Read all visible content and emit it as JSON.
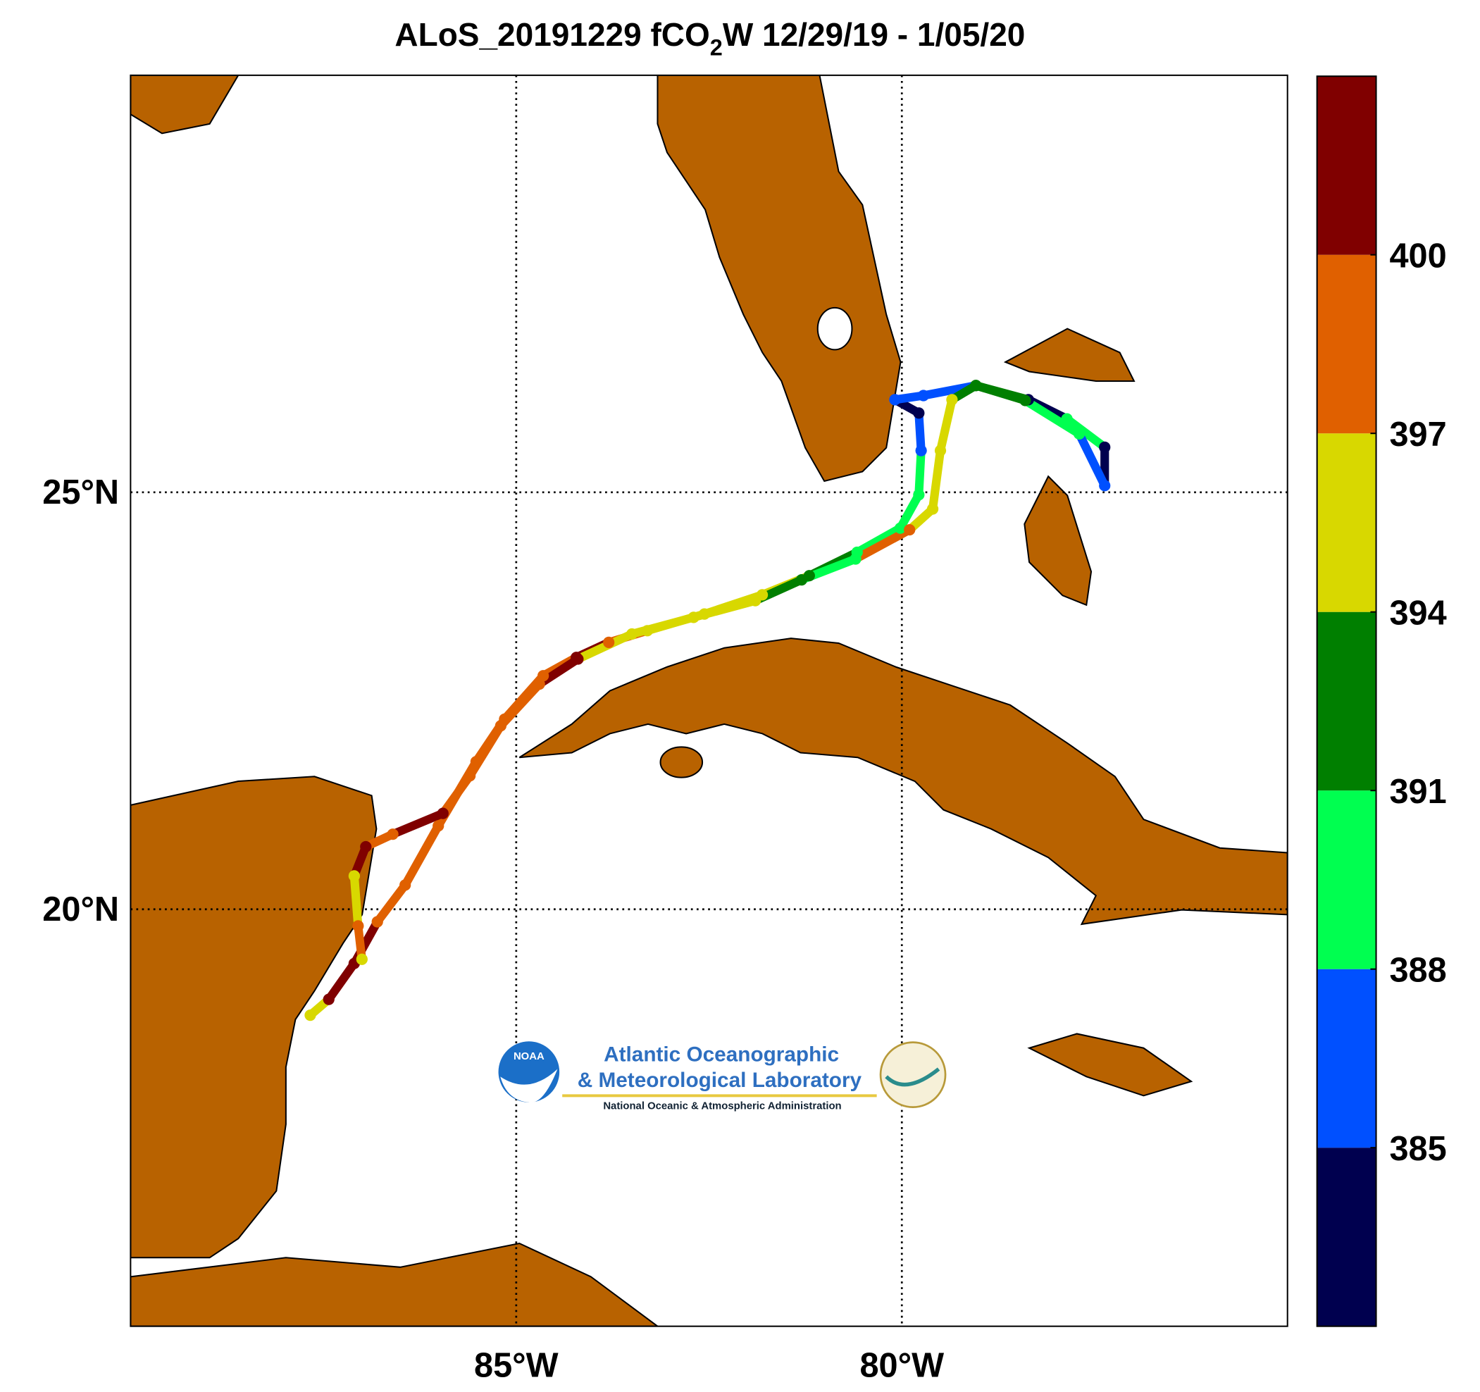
{
  "chart_data": {
    "type": "track-map",
    "title": {
      "prefix": "ALoS_20191229 fCO",
      "subscript": "2",
      "suffix": "W 12/29/19 - 1/05/20"
    },
    "xlim": [
      -90,
      -75
    ],
    "ylim": [
      15,
      30
    ],
    "xticks": [
      {
        "value": -85,
        "label": "85°W"
      },
      {
        "value": -80,
        "label": "80°W"
      }
    ],
    "yticks": [
      {
        "value": 25,
        "label": "25°N"
      },
      {
        "value": 20,
        "label": "20°N"
      }
    ],
    "grid": true,
    "colorbar": {
      "clim": [
        382,
        403
      ],
      "ticks": [
        385,
        388,
        391,
        394,
        397,
        400
      ],
      "colors": [
        "#00004f",
        "#0050ff",
        "#00ff50",
        "#007f00",
        "#d8d800",
        "#e06000",
        "#800000"
      ]
    },
    "track": {
      "lon": [
        -87.67,
        -87.43,
        -87.1,
        -86.8,
        -86.44,
        -86.01,
        -85.52,
        -85.15,
        -84.65,
        -84.22,
        -83.8,
        -83.3,
        -82.56,
        -81.81,
        -81.2,
        -80.58,
        -80.02,
        -79.78,
        -79.75,
        -79.78,
        -80.09,
        -79.72,
        -79.04,
        -78.36,
        -77.86,
        -77.37,
        -77.37,
        -77.7,
        -78.4,
        -79.04,
        -79.35,
        -79.5,
        -79.6,
        -79.9,
        -80.6,
        -81.3,
        -81.9,
        -82.7,
        -83.5,
        -84.2,
        -84.7,
        -85.2,
        -85.6,
        -85.95,
        -86.6,
        -86.95,
        -87.1,
        -87.05,
        -87.0
      ],
      "lat": [
        18.73,
        18.92,
        19.35,
        19.85,
        20.29,
        21.0,
        21.77,
        22.28,
        22.8,
        23.02,
        23.2,
        23.34,
        23.54,
        23.77,
        24.0,
        24.28,
        24.57,
        24.97,
        25.5,
        25.95,
        26.11,
        26.16,
        26.28,
        26.11,
        25.88,
        25.54,
        25.08,
        25.7,
        26.1,
        26.28,
        26.11,
        25.5,
        24.8,
        24.55,
        24.2,
        23.95,
        23.7,
        23.5,
        23.3,
        23.0,
        22.7,
        22.2,
        21.6,
        21.15,
        20.9,
        20.75,
        20.4,
        19.8,
        19.4
      ],
      "fco2": [
        396,
        401,
        401,
        399,
        399,
        399,
        398,
        399,
        399,
        401,
        399,
        396,
        395,
        395,
        392,
        389,
        389,
        390,
        387,
        384,
        386,
        387,
        393,
        384,
        390,
        384,
        385,
        390,
        392,
        393,
        396,
        396,
        396,
        397,
        390,
        392,
        395,
        396,
        396,
        400,
        399,
        399,
        397,
        401,
        399,
        401,
        396,
        397,
        396
      ]
    },
    "logo": {
      "line1": "Atlantic Oceanographic",
      "line2": "& Meteorological Laboratory",
      "line3": "National Oceanic & Atmospheric Administration",
      "badge": "NOAA"
    }
  }
}
